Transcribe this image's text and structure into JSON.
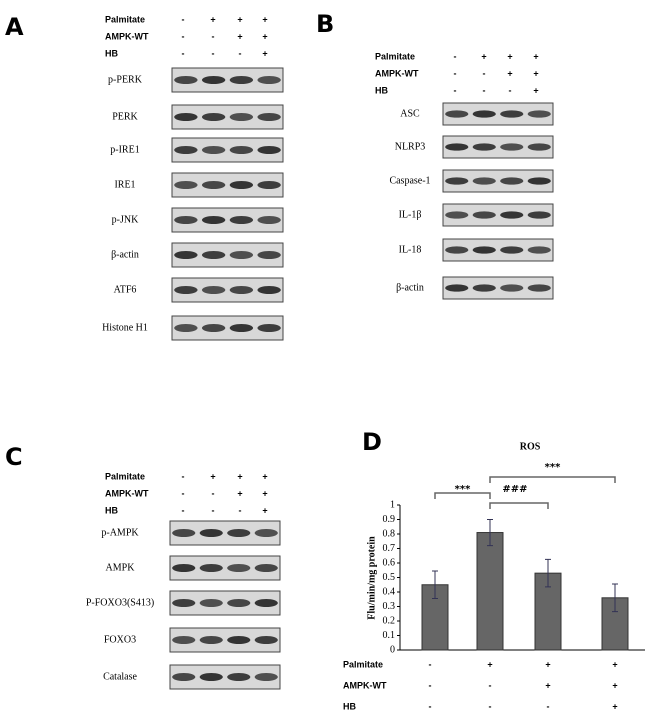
{
  "panels": [
    {
      "label": "A",
      "conditions": [
        {
          "name": "Palmitate",
          "signs": [
            "-",
            "+",
            "+",
            "+"
          ]
        },
        {
          "name": "AMPK-WT",
          "signs": [
            "-",
            "-",
            "+",
            "+"
          ]
        },
        {
          "name": "HB",
          "signs": [
            "-",
            "-",
            "-",
            "+"
          ]
        }
      ],
      "blots": [
        "p-PERK",
        "PERK",
        "p-IRE1",
        "IRE1",
        "p-JNK",
        "β-actin",
        "ATF6",
        "Histone H1"
      ]
    },
    {
      "label": "B",
      "conditions": [
        {
          "name": "Palmitate",
          "signs": [
            "-",
            "+",
            "+",
            "+"
          ]
        },
        {
          "name": "AMPK-WT",
          "signs": [
            "-",
            "-",
            "+",
            "+"
          ]
        },
        {
          "name": "HB",
          "signs": [
            "-",
            "-",
            "-",
            "+"
          ]
        }
      ],
      "blots": [
        "ASC",
        "NLRP3",
        "Caspase-1",
        "IL-1β",
        "IL-18",
        "β-actin"
      ]
    },
    {
      "label": "C",
      "conditions": [
        {
          "name": "Palmitate",
          "signs": [
            "-",
            "+",
            "+",
            "+"
          ]
        },
        {
          "name": "AMPK-WT",
          "signs": [
            "-",
            "-",
            "+",
            "+"
          ]
        },
        {
          "name": "HB",
          "signs": [
            "-",
            "-",
            "-",
            "+"
          ]
        }
      ],
      "blots": [
        "p-AMPK",
        "AMPK",
        "P-FOXO3(S413)",
        "FOXO3",
        "Catalase"
      ]
    }
  ],
  "chart_data": {
    "type": "bar",
    "label": "D",
    "title": "ROS",
    "ylabel": "Flu/min/mg protein",
    "categories": [
      null,
      null,
      null,
      null
    ],
    "values": [
      0.45,
      0.81,
      0.53,
      0.36
    ],
    "errors": [
      0.095,
      0.09,
      0.095,
      0.095
    ],
    "color": "#666666",
    "ylim": [
      0,
      1
    ],
    "yticks": [
      0,
      0.1,
      0.2,
      0.3,
      0.4,
      0.5,
      0.6,
      0.7,
      0.8,
      0.9,
      1
    ],
    "annotations": [
      "***",
      "###",
      "***"
    ],
    "conditions": [
      {
        "name": "Palmitate",
        "signs": [
          "-",
          "+",
          "+",
          "+"
        ]
      },
      {
        "name": "AMPK-WT",
        "signs": [
          "-",
          "-",
          "+",
          "+"
        ]
      },
      {
        "name": "HB",
        "signs": [
          "-",
          "-",
          "-",
          "+"
        ]
      }
    ]
  }
}
